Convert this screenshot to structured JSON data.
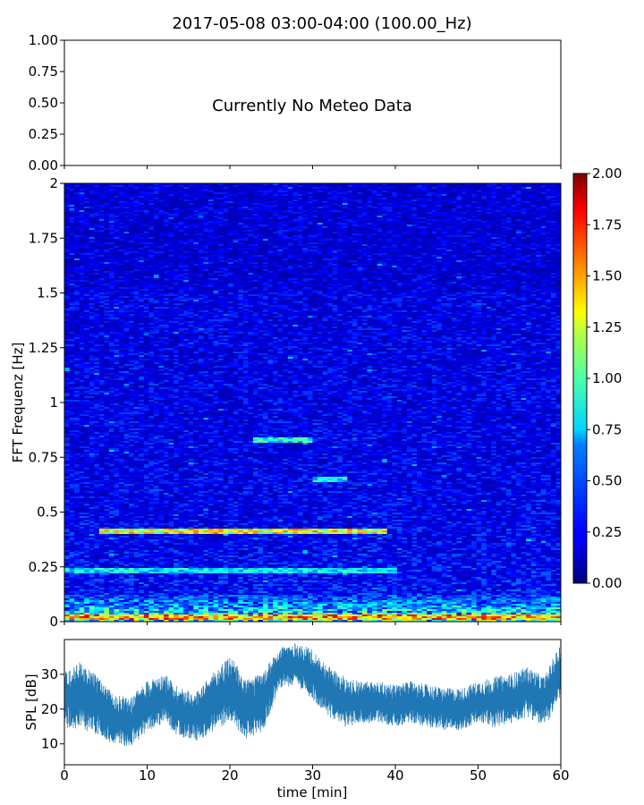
{
  "chart_data": [
    {
      "type": "line",
      "panel": "meteo",
      "title": "2017-05-08 03:00-04:00 (100.00_Hz)",
      "annotation": "Currently No Meteo Data",
      "ylim": [
        0,
        1
      ],
      "yticks": [
        "0.00",
        "0.25",
        "0.50",
        "0.75",
        "1.00"
      ],
      "xlim": [
        0,
        60
      ],
      "series": []
    },
    {
      "type": "heatmap",
      "panel": "spectrogram",
      "ylabel": "FFT Frequenz [Hz]",
      "xlim": [
        0,
        60
      ],
      "ylim": [
        0,
        2
      ],
      "yticks": [
        "0",
        "0.25",
        "0.5",
        "0.75",
        "1",
        "1.25",
        "1.5",
        "1.75",
        "2"
      ],
      "colormap": "jet",
      "colorbar": {
        "range": [
          0,
          2
        ],
        "ticks": [
          "0.00",
          "0.25",
          "0.50",
          "0.75",
          "1.00",
          "1.25",
          "1.50",
          "1.75",
          "2.00"
        ]
      },
      "features": [
        {
          "freq_hz": 0.41,
          "t_start_min": 4,
          "t_end_min": 39,
          "level": 1.2
        },
        {
          "freq_hz": 0.83,
          "t_start_min": 23,
          "t_end_min": 30,
          "level": 0.8
        },
        {
          "freq_hz": 0.65,
          "t_start_min": 30,
          "t_end_min": 34,
          "level": 0.7
        },
        {
          "freq_hz": 0.23,
          "t_start_min": 0,
          "t_end_min": 40,
          "level": 0.7
        },
        {
          "freq_hz": 0.02,
          "t_start_min": 0,
          "t_end_min": 60,
          "level": 1.4
        }
      ]
    },
    {
      "type": "line",
      "panel": "spl",
      "xlabel": "time [min]",
      "ylabel": "SPL [dB]",
      "xlim": [
        0,
        60
      ],
      "ylim": [
        4,
        40
      ],
      "xticks": [
        "0",
        "10",
        "20",
        "30",
        "40",
        "50",
        "60"
      ],
      "yticks": [
        "10",
        "20",
        "30"
      ],
      "color": "#1f77b4",
      "series": [
        {
          "x": [
            0,
            2,
            4,
            6,
            8,
            10,
            12,
            14,
            16,
            18,
            20,
            22,
            24,
            26,
            28,
            30,
            32,
            34,
            36,
            38,
            40,
            42,
            44,
            46,
            48,
            50,
            52,
            54,
            56,
            58,
            60
          ],
          "values": [
            23,
            24,
            21,
            17,
            16,
            21,
            23,
            19,
            18,
            22,
            26,
            20,
            22,
            32,
            33,
            30,
            25,
            22,
            22,
            22,
            21,
            22,
            21,
            20,
            20,
            22,
            22,
            23,
            25,
            22,
            31
          ],
          "spread": [
            7,
            8,
            7,
            6,
            6,
            6,
            6,
            6,
            6,
            7,
            8,
            7,
            7,
            5,
            5,
            6,
            6,
            6,
            5,
            5,
            5,
            5,
            5,
            5,
            5,
            5,
            6,
            6,
            6,
            6,
            7
          ]
        }
      ]
    }
  ]
}
